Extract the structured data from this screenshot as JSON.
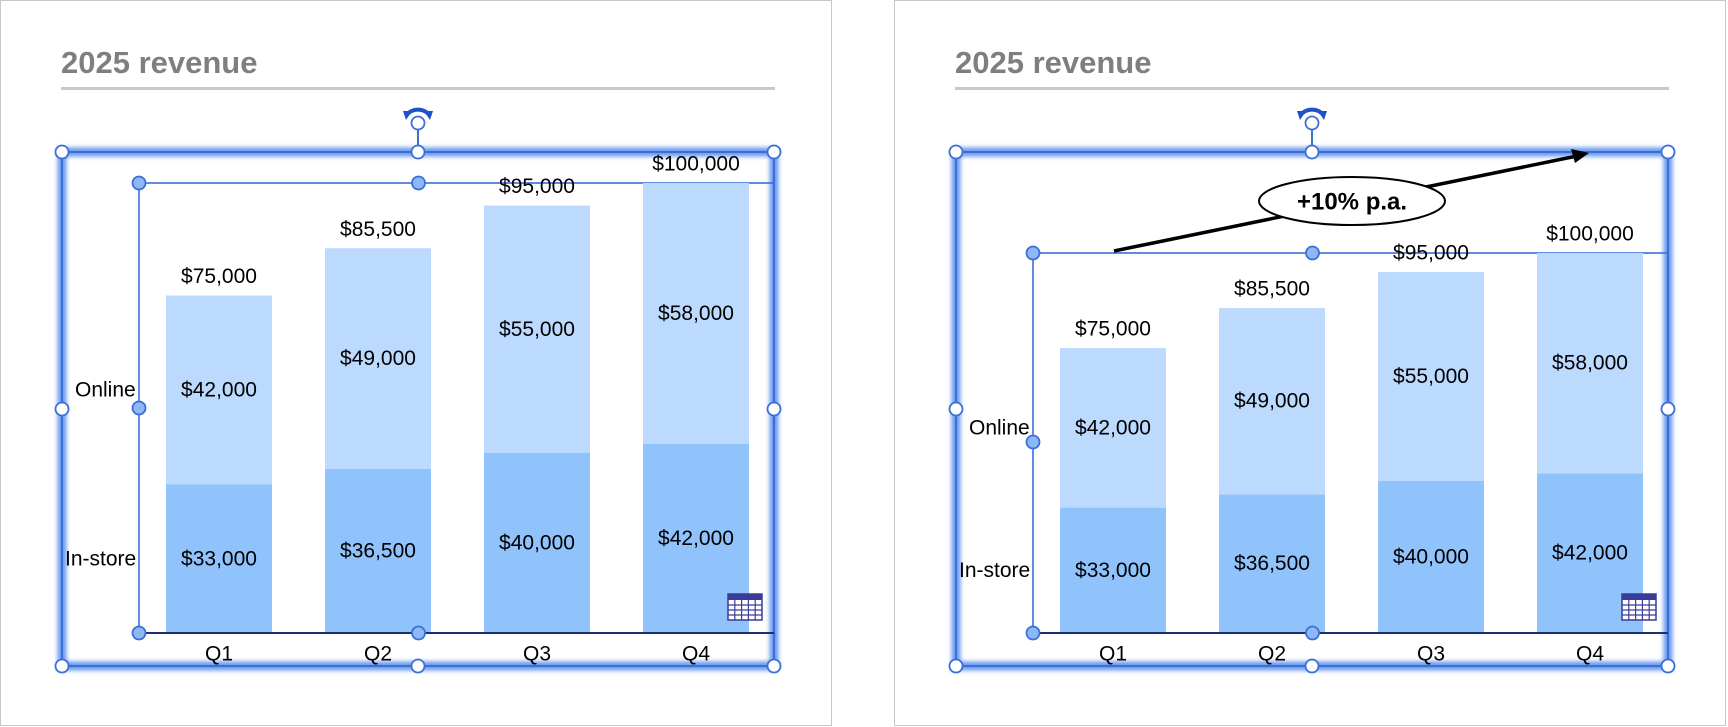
{
  "slides": [
    {
      "title": "2025 revenue",
      "annotation": null
    },
    {
      "title": "2025 revenue",
      "annotation": {
        "label": "+10% p.a."
      }
    }
  ],
  "chart_data": [
    {
      "type": "bar",
      "stacked": true,
      "categories": [
        "Q1",
        "Q2",
        "Q3",
        "Q4"
      ],
      "series": [
        {
          "name": "In-store",
          "values": [
            33000,
            36500,
            40000,
            42000
          ],
          "labels": [
            "$33,000",
            "$36,500",
            "$40,000",
            "$42,000"
          ],
          "color": "#90c2fc"
        },
        {
          "name": "Online",
          "values": [
            42000,
            49000,
            55000,
            58000
          ],
          "labels": [
            "$42,000",
            "$49,000",
            "$55,000",
            "$58,000"
          ],
          "color": "#bcd9fe"
        }
      ],
      "totals": [
        75000,
        85500,
        95000,
        100000
      ],
      "total_labels": [
        "$75,000",
        "$85,500",
        "$95,000",
        "$100,000"
      ],
      "ylim": [
        0,
        100000
      ],
      "legend": "left",
      "grid": false
    },
    {
      "type": "bar",
      "stacked": true,
      "categories": [
        "Q1",
        "Q2",
        "Q3",
        "Q4"
      ],
      "series": [
        {
          "name": "In-store",
          "values": [
            33000,
            36500,
            40000,
            42000
          ],
          "labels": [
            "$33,000",
            "$36,500",
            "$40,000",
            "$42,000"
          ],
          "color": "#90c2fc"
        },
        {
          "name": "Online",
          "values": [
            42000,
            49000,
            55000,
            58000
          ],
          "labels": [
            "$42,000",
            "$49,000",
            "$55,000",
            "$58,000"
          ],
          "color": "#bcd9fe"
        }
      ],
      "totals": [
        75000,
        85500,
        95000,
        100000
      ],
      "total_labels": [
        "$75,000",
        "$85,500",
        "$95,000",
        "$100,000"
      ],
      "ylim": [
        0,
        100000
      ],
      "legend": "left",
      "grid": false
    }
  ],
  "colors": {
    "selection": "#3a6fd6",
    "axis": "#1f2f6b",
    "title": "#7f7f7f"
  },
  "icons": {
    "rotate": "rotate-handle-icon",
    "datasheet": "datasheet-icon"
  }
}
